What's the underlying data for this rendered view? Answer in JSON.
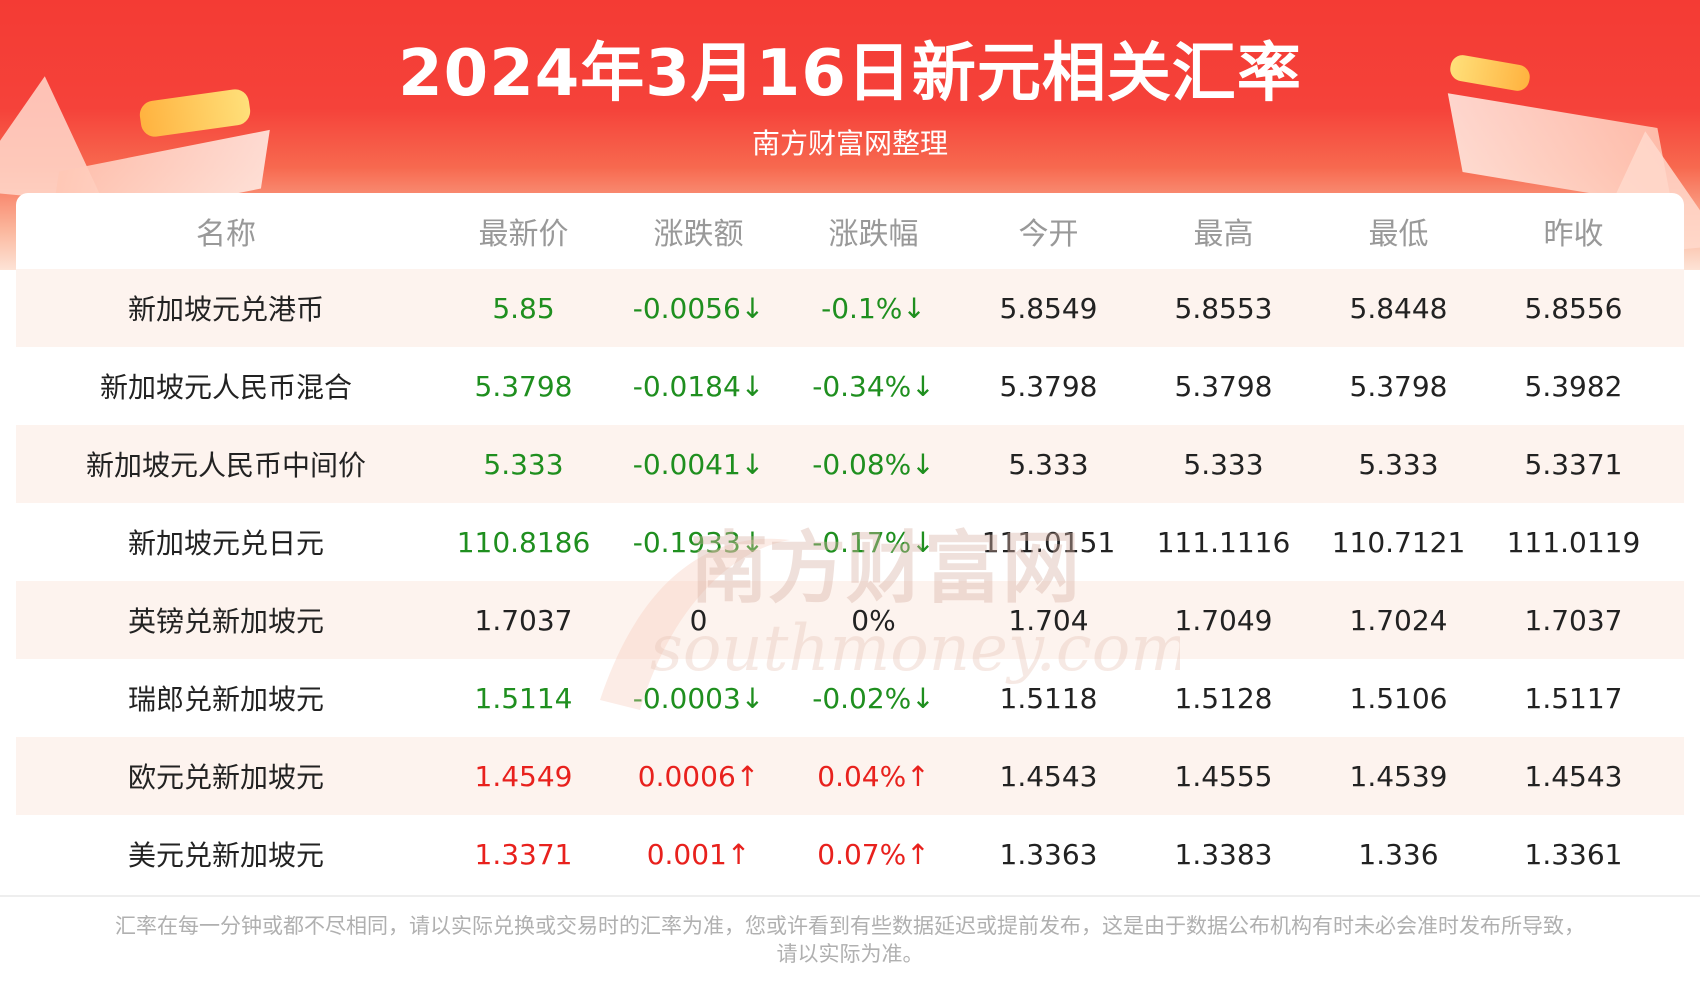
{
  "title": "2024年3月16日新元相关汇率",
  "subtitle": "南方财富网整理",
  "table": {
    "headers": [
      "名称",
      "最新价",
      "涨跌额",
      "涨跌幅",
      "今开",
      "最高",
      "最低",
      "昨收"
    ],
    "rows": [
      {
        "name": "新加坡元兑港币",
        "latest": "5.85",
        "change": "-0.0056↓",
        "pct": "-0.1%↓",
        "open": "5.8549",
        "high": "5.8553",
        "low": "5.8448",
        "prev": "5.8556",
        "trend": "down"
      },
      {
        "name": "新加坡元人民币混合",
        "latest": "5.3798",
        "change": "-0.0184↓",
        "pct": "-0.34%↓",
        "open": "5.3798",
        "high": "5.3798",
        "low": "5.3798",
        "prev": "5.3982",
        "trend": "down"
      },
      {
        "name": "新加坡元人民币中间价",
        "latest": "5.333",
        "change": "-0.0041↓",
        "pct": "-0.08%↓",
        "open": "5.333",
        "high": "5.333",
        "low": "5.333",
        "prev": "5.3371",
        "trend": "down"
      },
      {
        "name": "新加坡元兑日元",
        "latest": "110.8186",
        "change": "-0.1933↓",
        "pct": "-0.17%↓",
        "open": "111.0151",
        "high": "111.1116",
        "low": "110.7121",
        "prev": "111.0119",
        "trend": "down"
      },
      {
        "name": "英镑兑新加坡元",
        "latest": "1.7037",
        "change": "0",
        "pct": "0%",
        "open": "1.704",
        "high": "1.7049",
        "low": "1.7024",
        "prev": "1.7037",
        "trend": "flat"
      },
      {
        "name": "瑞郎兑新加坡元",
        "latest": "1.5114",
        "change": "-0.0003↓",
        "pct": "-0.02%↓",
        "open": "1.5118",
        "high": "1.5128",
        "low": "1.5106",
        "prev": "1.5117",
        "trend": "down"
      },
      {
        "name": "欧元兑新加坡元",
        "latest": "1.4549",
        "change": "0.0006↑",
        "pct": "0.04%↑",
        "open": "1.4543",
        "high": "1.4555",
        "low": "1.4539",
        "prev": "1.4543",
        "trend": "up"
      },
      {
        "name": "美元兑新加坡元",
        "latest": "1.3371",
        "change": "0.001↑",
        "pct": "0.07%↑",
        "open": "1.3363",
        "high": "1.3383",
        "low": "1.336",
        "prev": "1.3361",
        "trend": "up"
      }
    ]
  },
  "watermark": {
    "cn": "南方财富网",
    "en": "southmoney.com"
  },
  "footnote": {
    "line1": "汇率在每一分钟或都不尽相同，请以实际兑换或交易时的汇率为准，您或许看到有些数据延迟或提前发布，这是由于数据公布机构有时未必会准时发布所导致，",
    "line2": "请以实际为准。"
  },
  "colors": {
    "banner": "#f43b34",
    "down": "#1f8f1f",
    "up": "#e8211d",
    "row_alt": "#fdf3ee",
    "header_text": "#999999"
  }
}
